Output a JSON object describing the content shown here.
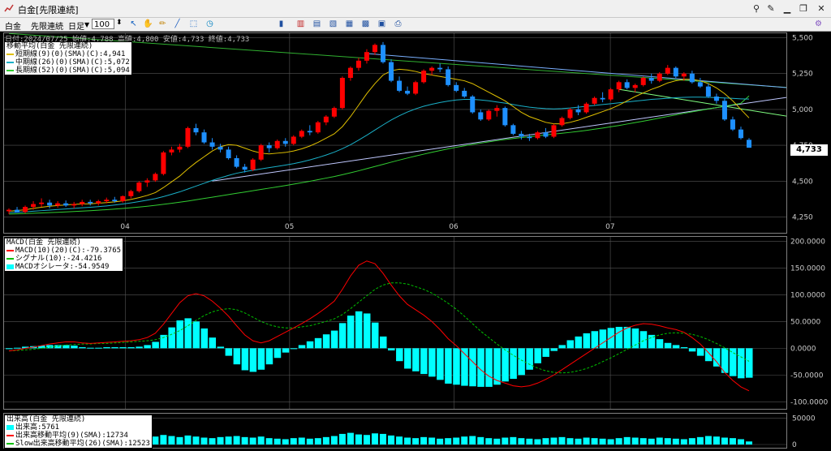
{
  "window": {
    "title": "白金[先限連続]"
  },
  "toolbar": {
    "menu1": "白金",
    "menu2": "先限連続",
    "period": "日足",
    "zoom": "100"
  },
  "info_line": "日付:2024/07/25 始値:4,788 高値:4,800 安値:4,733 終値:4,733",
  "ma_legend": {
    "title": "移動平均(白金 先限連続)",
    "short": "短期線(9)(0)(SMA)(C):4,941",
    "mid": "中期線(26)(0)(SMA)(C):5,072",
    "long": "長期線(52)(0)(SMA)(C):5,094"
  },
  "macd_legend": {
    "title": "MACD(白金 先限連続)",
    "macd": "MACD(10)(20)(C):-79.3765",
    "signal": "シグナル(10):-24.4216",
    "osc": "MACDオシレータ:-54.9549"
  },
  "vol_legend": {
    "title": "出来高(白金 先限連続)",
    "vol": "出来高:5761",
    "sma9": "出来高移動平均(9)(SMA):12734",
    "sma26": "Slow出来高移動平均(26)(SMA):12523"
  },
  "price_axis": {
    "ticks": [
      "5,500",
      "5,250",
      "5,000",
      "4,750",
      "4,500",
      "4,250"
    ],
    "last": "4,733"
  },
  "macd_axis": {
    "ticks": [
      "200.0000",
      "150.0000",
      "100.0000",
      "50.0000",
      "0.0000",
      "-50.0000",
      "-100.0000"
    ]
  },
  "vol_axis": {
    "ticks": [
      "50000",
      "0"
    ]
  },
  "month_labels": [
    "04",
    "05",
    "06",
    "07"
  ],
  "colors": {
    "up": "#ff0000",
    "down": "#1e90ff",
    "short_ma": "#e0c000",
    "mid_ma": "#1ab0c8",
    "long_ma": "#32cd32",
    "macd": "#ff0000",
    "signal": "#00c000",
    "osc": "#00ffff",
    "volume": "#00ffff"
  },
  "chart_data": {
    "type": "candlestick",
    "ylim": [
      4230,
      5520
    ],
    "candles": [
      [
        4290,
        4310,
        4270,
        4300
      ],
      [
        4300,
        4320,
        4285,
        4280
      ],
      [
        4285,
        4330,
        4275,
        4320
      ],
      [
        4320,
        4360,
        4300,
        4340
      ],
      [
        4340,
        4380,
        4320,
        4350
      ],
      [
        4350,
        4370,
        4310,
        4330
      ],
      [
        4330,
        4360,
        4315,
        4345
      ],
      [
        4345,
        4365,
        4320,
        4330
      ],
      [
        4330,
        4355,
        4310,
        4340
      ],
      [
        4340,
        4370,
        4325,
        4355
      ],
      [
        4355,
        4370,
        4330,
        4345
      ],
      [
        4345,
        4370,
        4330,
        4360
      ],
      [
        4360,
        4385,
        4345,
        4370
      ],
      [
        4370,
        4390,
        4350,
        4360
      ],
      [
        4360,
        4400,
        4350,
        4395
      ],
      [
        4395,
        4440,
        4380,
        4430
      ],
      [
        4430,
        4500,
        4420,
        4490
      ],
      [
        4490,
        4520,
        4460,
        4505
      ],
      [
        4505,
        4560,
        4495,
        4550
      ],
      [
        4550,
        4710,
        4540,
        4700
      ],
      [
        4700,
        4740,
        4680,
        4720
      ],
      [
        4720,
        4760,
        4700,
        4740
      ],
      [
        4740,
        4880,
        4730,
        4870
      ],
      [
        4870,
        4900,
        4820,
        4840
      ],
      [
        4840,
        4860,
        4760,
        4770
      ],
      [
        4770,
        4800,
        4720,
        4740
      ],
      [
        4740,
        4760,
        4700,
        4720
      ],
      [
        4720,
        4740,
        4650,
        4660
      ],
      [
        4660,
        4680,
        4590,
        4600
      ],
      [
        4600,
        4620,
        4560,
        4580
      ],
      [
        4580,
        4660,
        4570,
        4650
      ],
      [
        4650,
        4760,
        4640,
        4750
      ],
      [
        4750,
        4770,
        4700,
        4730
      ],
      [
        4730,
        4790,
        4720,
        4780
      ],
      [
        4780,
        4800,
        4740,
        4760
      ],
      [
        4760,
        4820,
        4750,
        4810
      ],
      [
        4810,
        4860,
        4800,
        4850
      ],
      [
        4850,
        4890,
        4820,
        4840
      ],
      [
        4840,
        4920,
        4830,
        4910
      ],
      [
        4910,
        4960,
        4890,
        4950
      ],
      [
        4950,
        5020,
        4940,
        5010
      ],
      [
        5010,
        5230,
        5000,
        5220
      ],
      [
        5220,
        5300,
        5200,
        5290
      ],
      [
        5290,
        5360,
        5270,
        5340
      ],
      [
        5340,
        5420,
        5320,
        5400
      ],
      [
        5400,
        5460,
        5380,
        5450
      ],
      [
        5450,
        5470,
        5320,
        5330
      ],
      [
        5330,
        5350,
        5190,
        5200
      ],
      [
        5200,
        5230,
        5120,
        5130
      ],
      [
        5130,
        5160,
        5100,
        5110
      ],
      [
        5110,
        5200,
        5100,
        5190
      ],
      [
        5190,
        5280,
        5180,
        5270
      ],
      [
        5270,
        5300,
        5240,
        5290
      ],
      [
        5290,
        5320,
        5260,
        5280
      ],
      [
        5280,
        5300,
        5160,
        5170
      ],
      [
        5170,
        5190,
        5120,
        5130
      ],
      [
        5130,
        5150,
        5080,
        5090
      ],
      [
        5090,
        5100,
        4970,
        4980
      ],
      [
        4980,
        5000,
        4920,
        4930
      ],
      [
        4930,
        5000,
        4920,
        4990
      ],
      [
        4990,
        5030,
        4950,
        5010
      ],
      [
        5010,
        5020,
        4880,
        4890
      ],
      [
        4890,
        4900,
        4820,
        4830
      ],
      [
        4830,
        4850,
        4790,
        4810
      ],
      [
        4810,
        4830,
        4780,
        4800
      ],
      [
        4800,
        4850,
        4790,
        4840
      ],
      [
        4840,
        4870,
        4800,
        4810
      ],
      [
        4810,
        4900,
        4800,
        4890
      ],
      [
        4890,
        4950,
        4880,
        4940
      ],
      [
        4940,
        5010,
        4930,
        5000
      ],
      [
        5000,
        5030,
        4960,
        4980
      ],
      [
        4980,
        5050,
        4970,
        5040
      ],
      [
        5040,
        5090,
        5030,
        5080
      ],
      [
        5080,
        5120,
        5050,
        5070
      ],
      [
        5070,
        5150,
        5060,
        5140
      ],
      [
        5140,
        5200,
        5120,
        5190
      ],
      [
        5190,
        5210,
        5140,
        5150
      ],
      [
        5150,
        5180,
        5120,
        5170
      ],
      [
        5170,
        5230,
        5160,
        5220
      ],
      [
        5220,
        5250,
        5180,
        5200
      ],
      [
        5200,
        5260,
        5190,
        5250
      ],
      [
        5250,
        5310,
        5240,
        5290
      ],
      [
        5290,
        5300,
        5220,
        5230
      ],
      [
        5230,
        5260,
        5200,
        5250
      ],
      [
        5250,
        5270,
        5180,
        5190
      ],
      [
        5190,
        5220,
        5150,
        5160
      ],
      [
        5160,
        5180,
        5080,
        5090
      ],
      [
        5090,
        5110,
        5040,
        5060
      ],
      [
        5060,
        5080,
        4920,
        4930
      ],
      [
        4930,
        4950,
        4850,
        4860
      ],
      [
        4860,
        4880,
        4790,
        4800
      ],
      [
        4788,
        4800,
        4733,
        4733
      ]
    ],
    "ma_short": [
      4290,
      4295,
      4300,
      4310,
      4318,
      4325,
      4330,
      4334,
      4338,
      4340,
      4342,
      4346,
      4350,
      4355,
      4362,
      4372,
      4385,
      4400,
      4420,
      4455,
      4495,
      4535,
      4585,
      4630,
      4670,
      4710,
      4740,
      4755,
      4750,
      4730,
      4710,
      4695,
      4690,
      4695,
      4700,
      4710,
      4725,
      4745,
      4770,
      4800,
      4830,
      4880,
      4950,
      5030,
      5110,
      5180,
      5240,
      5270,
      5280,
      5275,
      5265,
      5250,
      5240,
      5230,
      5220,
      5210,
      5200,
      5180,
      5150,
      5120,
      5090,
      5060,
      5020,
      4980,
      4950,
      4930,
      4910,
      4900,
      4900,
      4910,
      4925,
      4945,
      4965,
      4985,
      5005,
      5030,
      5060,
      5090,
      5115,
      5140,
      5160,
      5185,
      5200,
      5210,
      5210,
      5200,
      5180,
      5150,
      5110,
      5060,
      5000,
      4941
    ],
    "ma_mid": [
      4280,
      4283,
      4286,
      4290,
      4294,
      4298,
      4302,
      4306,
      4310,
      4314,
      4318,
      4322,
      4327,
      4333,
      4340,
      4348,
      4357,
      4367,
      4378,
      4392,
      4408,
      4425,
      4445,
      4465,
      4485,
      4505,
      4523,
      4540,
      4555,
      4566,
      4576,
      4585,
      4594,
      4603,
      4612,
      4622,
      4634,
      4648,
      4664,
      4682,
      4702,
      4726,
      4754,
      4786,
      4820,
      4856,
      4892,
      4926,
      4956,
      4982,
      5004,
      5022,
      5036,
      5048,
      5058,
      5066,
      5070,
      5070,
      5066,
      5060,
      5052,
      5044,
      5034,
      5024,
      5016,
      5010,
      5006,
      5004,
      5006,
      5010,
      5016,
      5022,
      5028,
      5034,
      5040,
      5046,
      5052,
      5058,
      5064,
      5070,
      5074,
      5078,
      5082,
      5084,
      5086,
      5086,
      5084,
      5082,
      5080,
      5077,
      5074,
      5072
    ],
    "ma_long": [
      4270,
      4272,
      4274,
      4276,
      4278,
      4280,
      4282,
      4285,
      4288,
      4291,
      4294,
      4297,
      4301,
      4305,
      4309,
      4314,
      4319,
      4325,
      4331,
      4338,
      4345,
      4353,
      4361,
      4370,
      4379,
      4388,
      4397,
      4406,
      4415,
      4424,
      4433,
      4442,
      4451,
      4460,
      4469,
      4479,
      4489,
      4499,
      4510,
      4521,
      4532,
      4545,
      4558,
      4572,
      4587,
      4602,
      4617,
      4632,
      4647,
      4661,
      4675,
      4688,
      4701,
      4713,
      4725,
      4736,
      4746,
      4756,
      4765,
      4774,
      4782,
      4790,
      4797,
      4804,
      4810,
      4816,
      4822,
      4828,
      4834,
      4840,
      4847,
      4854,
      4862,
      4870,
      4879,
      4888,
      4898,
      4908,
      4918,
      4929,
      4940,
      4951,
      4962,
      4973,
      4983,
      4993,
      5003,
      5013,
      5023,
      5033,
      5043,
      5094
    ],
    "trendlines": [
      {
        "p1": [
          0,
          5530
        ],
        "p2": [
          92,
          5160
        ],
        "color": "#30b030"
      },
      {
        "p1": [
          44,
          5390
        ],
        "p2": [
          92,
          5160
        ],
        "color": "#7ab0ff"
      },
      {
        "p1": [
          25,
          4500
        ],
        "p2": [
          92,
          5070
        ],
        "color": "#c0c8ff"
      },
      {
        "p1": [
          75,
          5140
        ],
        "p2": [
          92,
          4970
        ],
        "color": "#80ff80"
      }
    ],
    "macd": [
      -5,
      -3,
      0,
      2,
      5,
      8,
      10,
      12,
      12,
      10,
      9,
      10,
      11,
      12,
      13,
      14,
      16,
      20,
      28,
      45,
      65,
      85,
      98,
      102,
      98,
      88,
      75,
      60,
      42,
      25,
      14,
      10,
      14,
      22,
      30,
      38,
      46,
      55,
      65,
      76,
      88,
      110,
      135,
      155,
      163,
      158,
      140,
      118,
      98,
      82,
      72,
      62,
      50,
      35,
      18,
      5,
      -10,
      -25,
      -40,
      -52,
      -60,
      -65,
      -70,
      -72,
      -70,
      -65,
      -58,
      -50,
      -40,
      -30,
      -20,
      -10,
      0,
      10,
      20,
      30,
      38,
      43,
      46,
      45,
      42,
      38,
      35,
      30,
      20,
      8,
      -8,
      -25,
      -45,
      -60,
      -72,
      -79.3765
    ],
    "signal": [
      -5,
      -4,
      -3,
      -2,
      0,
      2,
      4,
      6,
      7,
      8,
      8,
      9,
      9,
      10,
      11,
      12,
      13,
      14,
      16,
      20,
      26,
      33,
      42,
      52,
      61,
      68,
      72,
      74,
      72,
      66,
      58,
      50,
      44,
      40,
      38,
      38,
      40,
      42,
      46,
      50,
      55,
      63,
      74,
      86,
      98,
      110,
      118,
      122,
      122,
      120,
      115,
      110,
      103,
      94,
      84,
      73,
      60,
      46,
      32,
      20,
      8,
      -3,
      -13,
      -22,
      -30,
      -37,
      -42,
      -45,
      -46,
      -45,
      -42,
      -38,
      -32,
      -25,
      -18,
      -10,
      -2,
      6,
      14,
      20,
      25,
      28,
      29,
      28,
      26,
      22,
      16,
      9,
      1,
      -8,
      -16,
      -24.4216
    ],
    "osc": [
      0,
      1,
      3,
      4,
      5,
      6,
      6,
      6,
      5,
      2,
      1,
      1,
      2,
      2,
      2,
      2,
      3,
      6,
      12,
      25,
      39,
      52,
      56,
      50,
      37,
      20,
      3,
      -14,
      -30,
      -41,
      -44,
      -40,
      -30,
      -18,
      -8,
      0,
      6,
      13,
      19,
      26,
      33,
      47,
      61,
      69,
      65,
      48,
      22,
      -4,
      -24,
      -38,
      -43,
      -48,
      -53,
      -59,
      -66,
      -68,
      -70,
      -71,
      -72,
      -72,
      -68,
      -62,
      -57,
      -50,
      -40,
      -28,
      -16,
      -5,
      6,
      15,
      22,
      28,
      32,
      35,
      38,
      40,
      40,
      37,
      32,
      25,
      17,
      10,
      6,
      2,
      -6,
      -14,
      -24,
      -34,
      -46,
      -52,
      -56,
      -54.9549
    ],
    "volume": [
      9000,
      11000,
      8000,
      10000,
      9000,
      8500,
      12000,
      9500,
      10000,
      8000,
      9000,
      11000,
      9000,
      10000,
      12000,
      13000,
      14000,
      12000,
      15000,
      18000,
      16000,
      14000,
      17000,
      15000,
      13000,
      12000,
      14000,
      15000,
      16000,
      14000,
      13000,
      15000,
      12000,
      11000,
      10000,
      12000,
      13000,
      11000,
      12000,
      14000,
      16000,
      20000,
      22000,
      19000,
      18000,
      21000,
      20000,
      17000,
      15000,
      13000,
      12000,
      14000,
      13000,
      11000,
      12000,
      13000,
      15000,
      16000,
      14000,
      12000,
      11000,
      13000,
      14000,
      12000,
      11000,
      10000,
      12000,
      13000,
      14000,
      12000,
      11000,
      13000,
      12000,
      11000,
      10000,
      12000,
      14000,
      13000,
      12000,
      11000,
      13000,
      12000,
      11000,
      10000,
      12000,
      14000,
      16000,
      15000,
      13000,
      12000,
      10000,
      5761
    ]
  }
}
